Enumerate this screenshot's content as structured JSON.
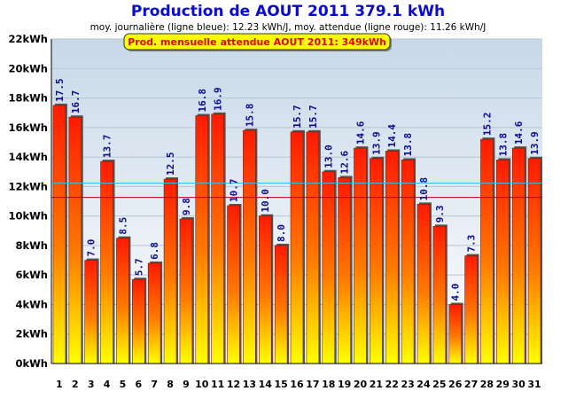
{
  "chart_data": {
    "type": "bar",
    "title": "Production de AOUT 2011  379.1 kWh",
    "subtitle": "moy. journalière (ligne bleue): 12.23 kWh/J,  moy. attendue (ligne rouge): 11.26 kWh/J",
    "badge": "Prod. mensuelle attendue AOUT 2011: 349kWh",
    "categories": [
      "1",
      "2",
      "3",
      "4",
      "5",
      "6",
      "7",
      "8",
      "9",
      "10",
      "11",
      "12",
      "13",
      "14",
      "15",
      "16",
      "17",
      "18",
      "19",
      "20",
      "21",
      "22",
      "23",
      "24",
      "25",
      "26",
      "27",
      "28",
      "29",
      "30",
      "31"
    ],
    "values": [
      17.5,
      16.7,
      7.0,
      13.7,
      8.5,
      5.7,
      6.8,
      12.5,
      9.8,
      16.8,
      16.9,
      10.7,
      15.8,
      10.0,
      8.0,
      15.7,
      15.7,
      13.0,
      12.6,
      14.6,
      13.9,
      14.4,
      13.8,
      10.8,
      9.3,
      4.0,
      7.3,
      15.2,
      13.8,
      14.6,
      13.9
    ],
    "value_labels": [
      "17.5",
      "16.7",
      "7.0",
      "13.7",
      "8.5",
      "5.7",
      "6.8",
      "12.5",
      "9.8",
      "16.8",
      "16.9",
      "10.7",
      "15.8",
      "10.0",
      "8.0",
      "15.7",
      "15.7",
      "13.0",
      "12.6",
      "14.6",
      "13.9",
      "14.4",
      "13.8",
      "10.8",
      "9.3",
      "4.0",
      "7.3",
      "15.2",
      "13.8",
      "14.6",
      "13.9"
    ],
    "yticks": [
      "0kWh",
      "2kWh",
      "4kWh",
      "6kWh",
      "8kWh",
      "10kWh",
      "12kWh",
      "14kWh",
      "16kWh",
      "18kWh",
      "20kWh",
      "22kWh"
    ],
    "ylim": [
      0,
      22
    ],
    "reference_lines": [
      {
        "value": 12.23,
        "color": "#40b8e0"
      },
      {
        "value": 11.26,
        "color": "#c00000"
      }
    ],
    "grid": true,
    "colors": {
      "bar_top": "#ff1a00",
      "bar_bottom": "#ffff00",
      "title": "#0a0ad0",
      "badge_bg": "#ffff00",
      "badge_text": "#e00000",
      "value_labels": "#0a0a90"
    }
  }
}
